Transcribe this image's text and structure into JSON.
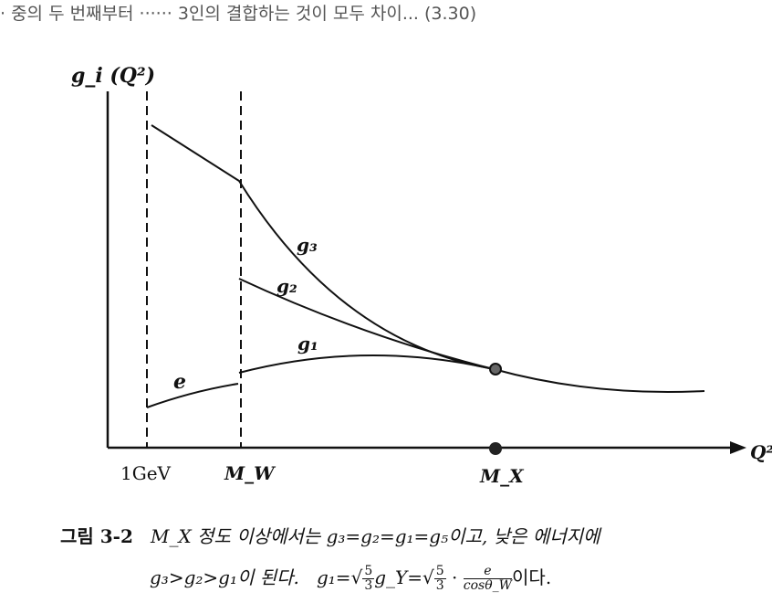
{
  "top_crop_text": "· 중의 두 번째부터 ······ 3인의 결합하는 것이 모두 차이... (3.30)",
  "diagram": {
    "y_axis_label": "g_i (Q²)",
    "x_axis_label": "Q²",
    "x_ticks": [
      "1GeV",
      "M_W",
      "M_X"
    ],
    "curve_labels": {
      "g3": "g₃",
      "g2": "g₂",
      "g1": "g₁",
      "e": "e"
    }
  },
  "caption": {
    "line1_prefix": "그림 3-2",
    "line1_body": "M_X 정도 이상에서는  g₃=g₂=g₁=g₅이고,  낮은 에너지에",
    "line2_text_a": "g₃>g₂>g₁이 된다.",
    "line2_text_b": "g₁=",
    "line2_frac_num": "5",
    "line2_frac_den": "3",
    "line2_text_c": "g_Y=",
    "line2_text_d": "·",
    "line2_frac2_num": "e",
    "line2_frac2_den": "cosθ_W",
    "line2_tail": "이다."
  }
}
